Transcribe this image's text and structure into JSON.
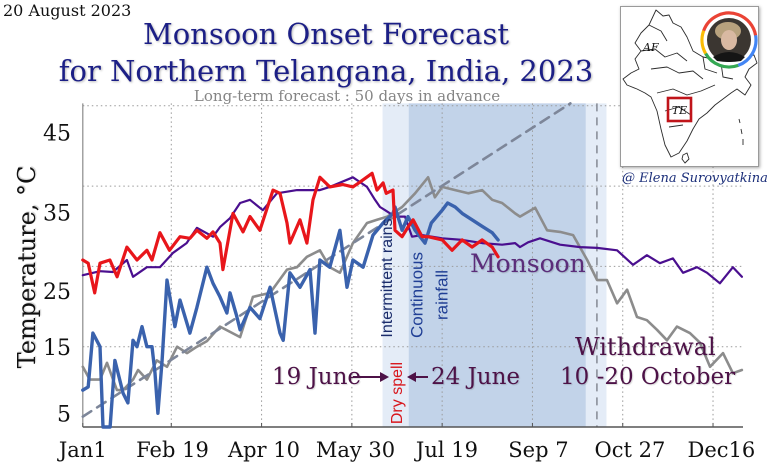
{
  "header": {
    "date": "20 August 2023",
    "title_line1": "Monsoon Onset Forecast",
    "title_line2": "for Northern Telangana, India, 2023",
    "subtitle": "Long-term forecast : 50 days in advance"
  },
  "annotations": {
    "intermittent_rains": "Intermittent rains",
    "continuous_rainfall_line1": "Continuous",
    "continuous_rainfall_line2": "rainfall",
    "dry_spell": "Dry spell",
    "monsoon": "Monsoon",
    "onset_from": "19 June",
    "onset_to": "24 June",
    "withdrawal": "Withdrawal",
    "withdrawal_dates": "10 -20 October",
    "credit": "@ Elena Surovyatkina"
  },
  "inset_map": {
    "label_af": "AF",
    "label_te": "TE",
    "highlight_color": "#c0141a",
    "avatar_ring_colors": [
      "#ea4335",
      "#4285f4",
      "#34a853",
      "#fbbc05"
    ]
  },
  "chart_data": {
    "type": "line",
    "title": "Monsoon Onset Forecast for Northern Telangana, India, 2023",
    "subtitle": "Long-term forecast : 50 days in advance",
    "xlabel": "",
    "ylabel": "Temperature, °C",
    "x_unit": "day of year (0 = Jan 1)",
    "xlim": [
      0,
      365.6
    ],
    "ylim": [
      5,
      45.3
    ],
    "grid": true,
    "legend": "none",
    "x_ticks": [
      {
        "value": 0,
        "label": "Jan1"
      },
      {
        "value": 49,
        "label": "Feb 19"
      },
      {
        "value": 99,
        "label": "Apr 10"
      },
      {
        "value": 149,
        "label": "May 30"
      },
      {
        "value": 199,
        "label": "Jul 19"
      },
      {
        "value": 249,
        "label": "Sep 7"
      },
      {
        "value": 299,
        "label": "Oct 27"
      },
      {
        "value": 349,
        "label": "Dec16"
      }
    ],
    "y_ticks": [
      {
        "value": 5,
        "label": "5"
      },
      {
        "value": 15,
        "label": "15"
      },
      {
        "value": 25,
        "label": "25"
      },
      {
        "value": 35,
        "label": "35"
      },
      {
        "value": 45,
        "label": "45"
      }
    ],
    "shaded_regions": [
      {
        "kind": "light",
        "x0": 166,
        "x1": 290,
        "color": "#e4ecf7"
      },
      {
        "kind": "dark",
        "x0": 180.5,
        "x1": 278.5,
        "color": "#c2d3e9"
      }
    ],
    "vlines": [
      {
        "x": 284.7,
        "style": "dashed",
        "color": "#8a8f99"
      }
    ],
    "series": [
      {
        "name": "gray",
        "color": "#8c8c8c",
        "style": "solid",
        "width": 2.6,
        "points": [
          [
            0,
            12.5
          ],
          [
            3.9,
            10.9
          ],
          [
            9.5,
            10.9
          ],
          [
            13.4,
            13.0
          ],
          [
            18.9,
            9.6
          ],
          [
            22.3,
            9.6
          ],
          [
            27.8,
            10.9
          ],
          [
            30.6,
            12.1
          ],
          [
            35.5,
            10.9
          ],
          [
            41,
            13.3
          ],
          [
            46.6,
            12.5
          ],
          [
            52.2,
            15.0
          ],
          [
            57.7,
            14.2
          ],
          [
            63.2,
            15.0
          ],
          [
            68.7,
            15.7
          ],
          [
            74.3,
            17.1
          ],
          [
            76,
            17.5
          ],
          [
            87.1,
            16.2
          ],
          [
            94.2,
            21.2
          ],
          [
            103.7,
            21.7
          ],
          [
            113.1,
            24.6
          ],
          [
            118.6,
            24.9
          ],
          [
            124.1,
            26.2
          ],
          [
            131.3,
            27.0
          ],
          [
            136.8,
            24.9
          ],
          [
            142.4,
            24.2
          ],
          [
            149.6,
            27.9
          ],
          [
            157.4,
            30.4
          ],
          [
            162.9,
            30.8
          ],
          [
            168.6,
            31.2
          ],
          [
            176.8,
            32.4
          ],
          [
            184,
            34.1
          ],
          [
            191.2,
            36.1
          ],
          [
            195,
            33.6
          ],
          [
            199,
            34.9
          ],
          [
            206.2,
            34.5
          ],
          [
            213.4,
            34.1
          ],
          [
            221.1,
            34.5
          ],
          [
            226.7,
            33.3
          ],
          [
            232.2,
            32.9
          ],
          [
            239.4,
            31.6
          ],
          [
            242.1,
            31.2
          ],
          [
            250.5,
            32.3
          ],
          [
            257.1,
            29.5
          ],
          [
            264.3,
            29.3
          ],
          [
            271.5,
            28.9
          ],
          [
            279.3,
            25.8
          ],
          [
            284.8,
            23.3
          ],
          [
            290.3,
            23.3
          ],
          [
            295.9,
            20.4
          ],
          [
            301.4,
            22.1
          ],
          [
            306.9,
            18.7
          ],
          [
            312.4,
            18.3
          ],
          [
            318,
            17.1
          ],
          [
            323.5,
            15.8
          ],
          [
            329,
            17.5
          ],
          [
            336.2,
            16.7
          ],
          [
            341.8,
            15.5
          ],
          [
            347.3,
            12.5
          ],
          [
            354.5,
            14.2
          ],
          [
            360,
            11.7
          ],
          [
            365,
            12.1
          ]
        ]
      },
      {
        "name": "gray-dashed",
        "color": "#7d8699",
        "style": "dashed",
        "width": 2.6,
        "points": [
          [
            0,
            6.3
          ],
          [
            270,
            45.3
          ]
        ]
      },
      {
        "name": "purple",
        "color": "#4a0f8f",
        "style": "solid",
        "width": 2.2,
        "points": [
          [
            0,
            23.9
          ],
          [
            9.5,
            24.4
          ],
          [
            16.6,
            24.3
          ],
          [
            24.4,
            25.8
          ],
          [
            27.8,
            23.7
          ],
          [
            35.5,
            24.9
          ],
          [
            42.7,
            24.9
          ],
          [
            50,
            26.7
          ],
          [
            57.5,
            27.9
          ],
          [
            63.2,
            29.8
          ],
          [
            72.1,
            28.7
          ],
          [
            76,
            29.9
          ],
          [
            81.5,
            31.0
          ],
          [
            87.1,
            32.9
          ],
          [
            92.6,
            33.3
          ],
          [
            99.7,
            32.0
          ],
          [
            107.5,
            34.1
          ],
          [
            118.6,
            34.5
          ],
          [
            131.3,
            34.5
          ],
          [
            136.8,
            34.9
          ],
          [
            149.6,
            36.1
          ],
          [
            157.4,
            34.9
          ],
          [
            161.8,
            33.3
          ],
          [
            164.6,
            32.4
          ],
          [
            167.4,
            32.0
          ],
          [
            172.9,
            31.2
          ],
          [
            178.4,
            31.2
          ],
          [
            182.3,
            28.7
          ],
          [
            187.9,
            28.9
          ],
          [
            199,
            28.5
          ],
          [
            210.1,
            28.3
          ],
          [
            221.1,
            27.9
          ],
          [
            232.2,
            27.7
          ],
          [
            239.4,
            27.9
          ],
          [
            242.1,
            27.4
          ],
          [
            246.6,
            28.0
          ],
          [
            253.2,
            28.5
          ],
          [
            264.3,
            27.7
          ],
          [
            275.4,
            27.4
          ],
          [
            284.8,
            27.3
          ],
          [
            295.9,
            27.0
          ],
          [
            304.7,
            25.2
          ],
          [
            312.4,
            26.4
          ],
          [
            319.6,
            25.4
          ],
          [
            326.8,
            26.0
          ],
          [
            332.4,
            24.2
          ],
          [
            340.1,
            24.9
          ],
          [
            345.7,
            24.2
          ],
          [
            352.8,
            22.9
          ],
          [
            360,
            24.9
          ],
          [
            365,
            23.7
          ]
        ]
      },
      {
        "name": "blue",
        "color": "#3a62ad",
        "style": "solid",
        "width": 3.4,
        "points": [
          [
            0,
            9.6
          ],
          [
            3,
            10.0
          ],
          [
            5.6,
            16.7
          ],
          [
            9.5,
            15.0
          ],
          [
            11.2,
            5.0
          ],
          [
            15.1,
            5.0
          ],
          [
            17.8,
            13.3
          ],
          [
            22.3,
            9.2
          ],
          [
            25,
            8.0
          ],
          [
            27.8,
            15.8
          ],
          [
            30,
            15.0
          ],
          [
            32.8,
            17.5
          ],
          [
            35.5,
            15.0
          ],
          [
            38.3,
            15.0
          ],
          [
            40,
            11.7
          ],
          [
            41.6,
            6.7
          ],
          [
            43.9,
            13.3
          ],
          [
            46.6,
            23.3
          ],
          [
            51,
            17.5
          ],
          [
            53.8,
            20.8
          ],
          [
            59.3,
            16.7
          ],
          [
            63.2,
            19.9
          ],
          [
            68.7,
            24.9
          ],
          [
            72.1,
            22.9
          ],
          [
            76,
            21.2
          ],
          [
            79.8,
            19.2
          ],
          [
            81.5,
            21.7
          ],
          [
            85,
            19.0
          ],
          [
            87.1,
            17.1
          ],
          [
            92.6,
            19.9
          ],
          [
            98.1,
            18.5
          ],
          [
            103.7,
            22.4
          ],
          [
            109.2,
            16.7
          ],
          [
            111,
            15.8
          ],
          [
            114.7,
            24.2
          ],
          [
            120.3,
            22.4
          ],
          [
            125.8,
            24.6
          ],
          [
            128.6,
            16.7
          ],
          [
            131.3,
            25.8
          ],
          [
            136.8,
            24.9
          ],
          [
            142.4,
            29.5
          ],
          [
            146.3,
            22.4
          ],
          [
            149.6,
            25.8
          ],
          [
            155.2,
            24.9
          ],
          [
            160.7,
            28.9
          ],
          [
            166.3,
            30.4
          ],
          [
            171.8,
            31.6
          ],
          [
            172.9,
            32.4
          ],
          [
            176.8,
            29.5
          ],
          [
            180.1,
            31.2
          ],
          [
            184,
            29.5
          ],
          [
            189.5,
            27.9
          ],
          [
            193,
            30.4
          ],
          [
            199,
            32.0
          ],
          [
            202,
            32.9
          ],
          [
            206.2,
            32.4
          ],
          [
            210.1,
            31.6
          ],
          [
            215.6,
            30.8
          ],
          [
            221.1,
            30.0
          ],
          [
            226.7,
            29.2
          ],
          [
            230,
            28.3
          ]
        ]
      },
      {
        "name": "red",
        "color": "#e8161b",
        "style": "solid",
        "width": 3.2,
        "points": [
          [
            0,
            25.8
          ],
          [
            3,
            25.4
          ],
          [
            6.6,
            21.7
          ],
          [
            9.5,
            25.4
          ],
          [
            15,
            25.8
          ],
          [
            19,
            23.7
          ],
          [
            24.4,
            27.4
          ],
          [
            30,
            25.8
          ],
          [
            35.5,
            27.0
          ],
          [
            38.3,
            25.8
          ],
          [
            42.7,
            29.2
          ],
          [
            48,
            27.0
          ],
          [
            53.8,
            28.7
          ],
          [
            59.3,
            28.5
          ],
          [
            63.2,
            29.5
          ],
          [
            68.7,
            28.5
          ],
          [
            72.1,
            29.3
          ],
          [
            76,
            27.9
          ],
          [
            77.6,
            24.6
          ],
          [
            83.2,
            31.6
          ],
          [
            88.7,
            29.3
          ],
          [
            92.6,
            31.2
          ],
          [
            98.1,
            29.5
          ],
          [
            105.3,
            34.5
          ],
          [
            109.2,
            34.1
          ],
          [
            113.1,
            30.4
          ],
          [
            114.7,
            27.9
          ],
          [
            120.3,
            30.8
          ],
          [
            124.1,
            27.9
          ],
          [
            127.5,
            33.3
          ],
          [
            131.3,
            36.1
          ],
          [
            136.8,
            34.9
          ],
          [
            144,
            35.2
          ],
          [
            149.6,
            34.9
          ],
          [
            153.5,
            35.5
          ],
          [
            160.2,
            36.6
          ],
          [
            162.9,
            34.5
          ],
          [
            166.3,
            35.4
          ],
          [
            168,
            34.1
          ],
          [
            171.8,
            34.5
          ],
          [
            172.9,
            29.5
          ],
          [
            176.8,
            28.7
          ],
          [
            180.1,
            29.9
          ],
          [
            182.9,
            30.8
          ],
          [
            187.9,
            28.7
          ],
          [
            191.2,
            28.7
          ],
          [
            199,
            28.3
          ],
          [
            204.5,
            27.0
          ],
          [
            210.1,
            28.3
          ],
          [
            215.6,
            27.4
          ],
          [
            221.1,
            28.3
          ],
          [
            226.7,
            27.4
          ],
          [
            230,
            26.2
          ]
        ]
      }
    ]
  }
}
